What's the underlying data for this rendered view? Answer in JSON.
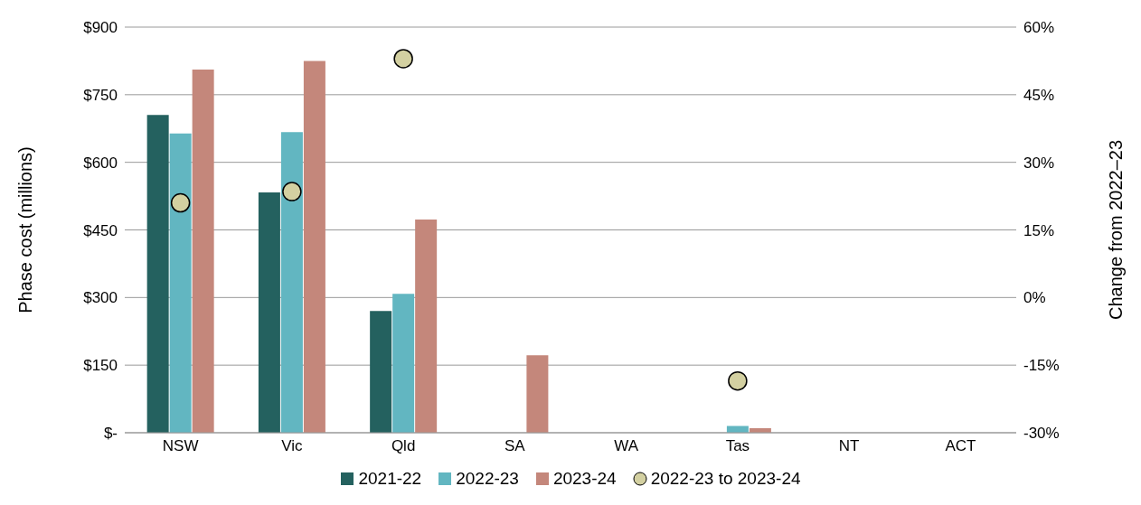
{
  "chart_data": {
    "type": "bar",
    "categories": [
      "NSW",
      "Vic",
      "Qld",
      "SA",
      "WA",
      "Tas",
      "NT",
      "ACT"
    ],
    "ylabel": "Phase cost (millions)",
    "y2label": "Change from 2022–23",
    "ylim": [
      0,
      900
    ],
    "yticks": [
      {
        "value": 0,
        "label": "$-"
      },
      {
        "value": 150,
        "label": "$150"
      },
      {
        "value": 300,
        "label": "$300"
      },
      {
        "value": 450,
        "label": "$450"
      },
      {
        "value": 600,
        "label": "$600"
      },
      {
        "value": 750,
        "label": "$750"
      },
      {
        "value": 900,
        "label": "$900"
      }
    ],
    "y2lim": [
      -30,
      60
    ],
    "y2ticks": [
      {
        "value": -30,
        "label": "-30%"
      },
      {
        "value": -15,
        "label": "-15%"
      },
      {
        "value": 0,
        "label": "0%"
      },
      {
        "value": 15,
        "label": "15%"
      },
      {
        "value": 30,
        "label": "30%"
      },
      {
        "value": 45,
        "label": "45%"
      },
      {
        "value": 60,
        "label": "60%"
      }
    ],
    "grid": "y",
    "legend": "bottom",
    "series": [
      {
        "name": "2021-22",
        "color": "#24615f",
        "values": [
          705,
          533,
          270,
          null,
          null,
          null,
          null,
          null
        ]
      },
      {
        "name": "2022-23",
        "color": "#62b6c1",
        "values": [
          664,
          667,
          308,
          null,
          null,
          15,
          null,
          null
        ]
      },
      {
        "name": "2023-24",
        "color": "#c4877b",
        "values": [
          806,
          825,
          473,
          172,
          null,
          10,
          null,
          null
        ]
      },
      {
        "name": "2022-23 to 2023-24",
        "type": "scatter",
        "axis": "y2",
        "color": "#d3d0a1",
        "marker": "circle",
        "x": [
          "NSW",
          "Vic",
          "Qld",
          "SA",
          "WA",
          "Tas",
          "NT",
          "ACT"
        ],
        "values": [
          21,
          23.5,
          53,
          null,
          null,
          -18.5,
          null,
          null
        ]
      }
    ]
  }
}
